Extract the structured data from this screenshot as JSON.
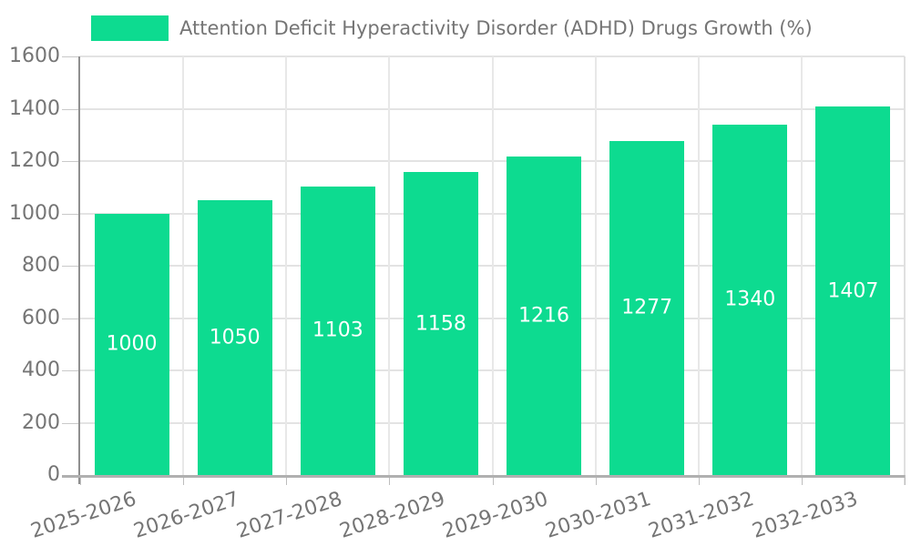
{
  "legend": {
    "label": "Attention Deficit Hyperactivity Disorder (ADHD) Drugs Growth (%)",
    "swatch_color": "#0ddb90"
  },
  "chart_data": {
    "type": "bar",
    "title": "",
    "series_name": "Attention Deficit Hyperactivity Disorder (ADHD) Drugs Growth (%)",
    "categories": [
      "2025-2026",
      "2026-2027",
      "2027-2028",
      "2028-2029",
      "2029-2030",
      "2030-2031",
      "2031-2032",
      "2032-2033"
    ],
    "values": [
      1000,
      1050,
      1103,
      1158,
      1216,
      1277,
      1340,
      1407
    ],
    "xlabel": "",
    "ylabel": "",
    "ylim": [
      0,
      1600
    ],
    "yticks": [
      0,
      200,
      400,
      600,
      800,
      1000,
      1200,
      1400,
      1600
    ],
    "grid": true,
    "legend_position": "top",
    "bar_color": "#0ddb90",
    "bar_label_color": "#ffffff",
    "axis_text_color": "#757575"
  }
}
